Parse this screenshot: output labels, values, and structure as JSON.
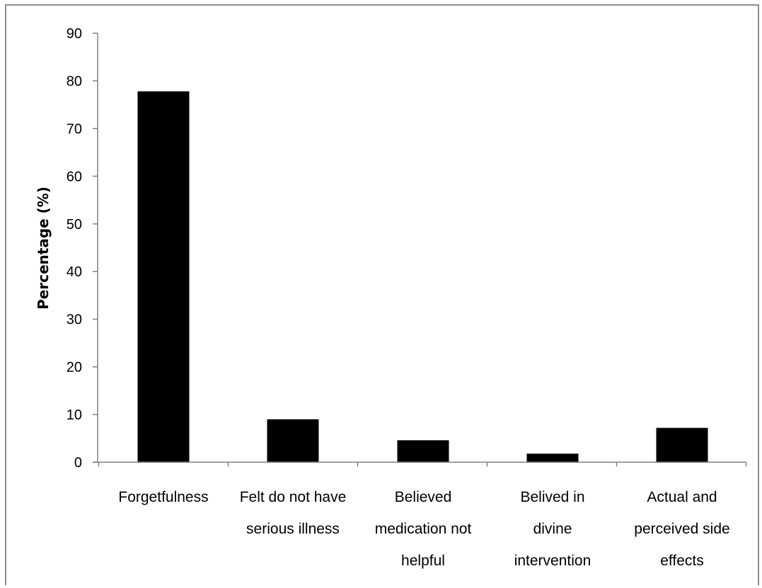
{
  "chart_data": {
    "type": "bar",
    "title": "",
    "xlabel": "",
    "ylabel": "Percentage (%)",
    "ylim": [
      0,
      90
    ],
    "yticks": [
      0,
      10,
      20,
      30,
      40,
      50,
      60,
      70,
      80,
      90
    ],
    "grid": false,
    "legend": "none",
    "categories": [
      [
        "Forgetfulness"
      ],
      [
        "Felt do not have",
        "serious illness"
      ],
      [
        "Believed",
        "medication not",
        "helpful"
      ],
      [
        "Belived in",
        "divine",
        "intervention"
      ],
      [
        "Actual and",
        "perceived side",
        "effects"
      ]
    ],
    "values": [
      77.8,
      9.0,
      4.6,
      1.8,
      7.2
    ],
    "bar_color": "#000000",
    "axis_color": "#808080"
  }
}
